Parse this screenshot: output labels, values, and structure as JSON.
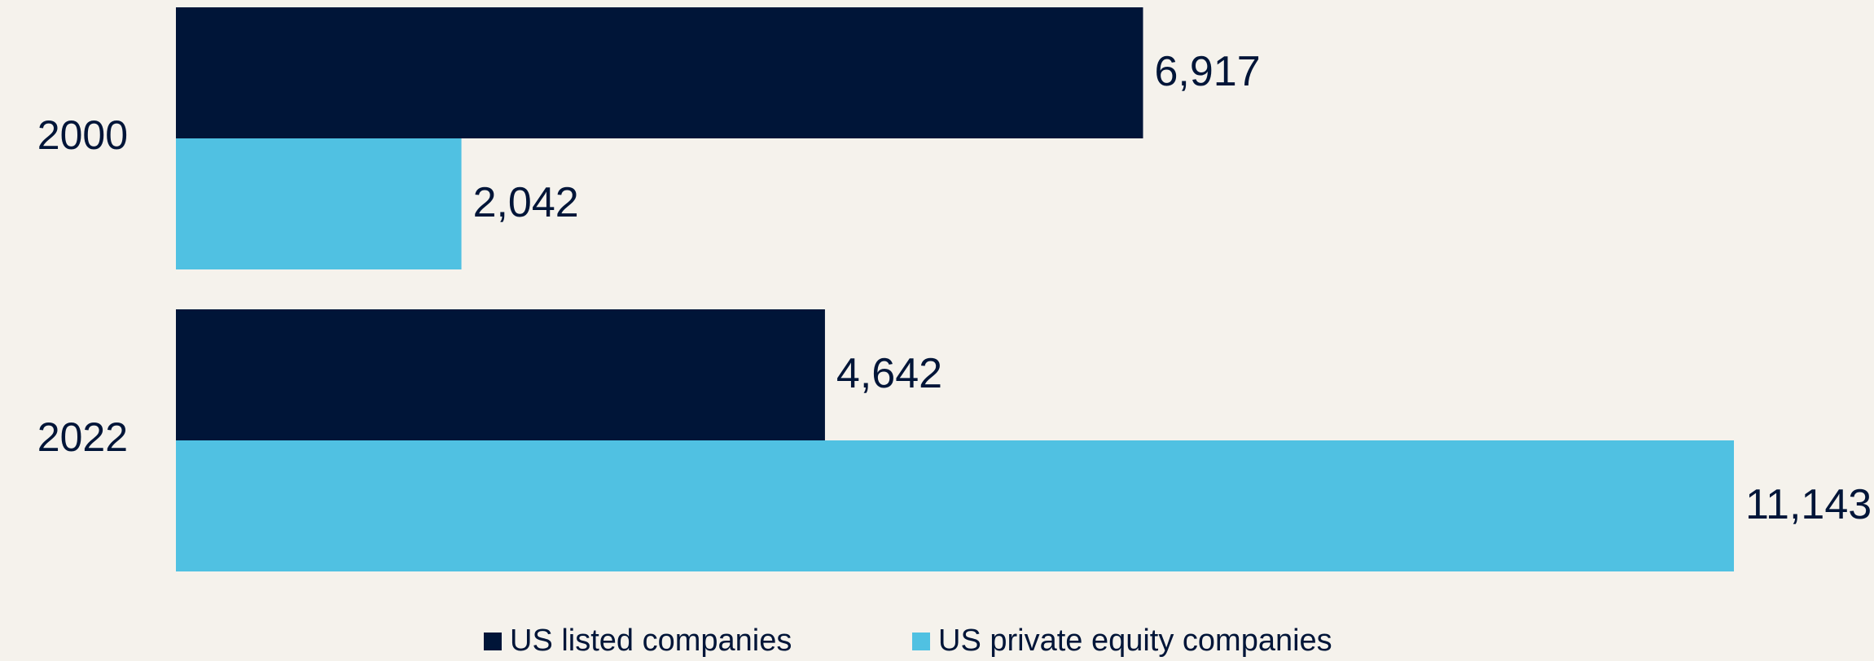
{
  "chart_data": {
    "type": "bar",
    "orientation": "horizontal",
    "categories": [
      "2000",
      "2022"
    ],
    "series": [
      {
        "name": "US listed companies",
        "color": "#001538",
        "values": [
          6917,
          4642
        ],
        "value_labels": [
          "6,917",
          "4,642"
        ]
      },
      {
        "name": "US private equity companies",
        "color": "#50c1e2",
        "values": [
          2042,
          11143
        ],
        "value_labels": [
          "2,042",
          "11,143"
        ]
      }
    ],
    "legend": "bottom"
  }
}
